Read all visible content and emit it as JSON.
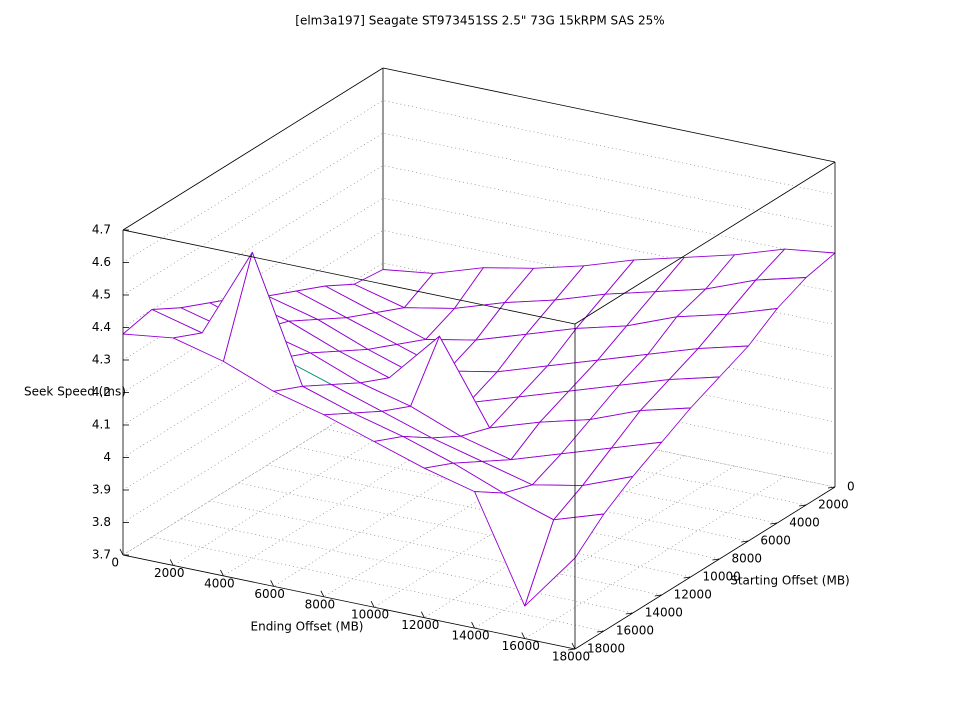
{
  "chart_data": {
    "type": "surface",
    "title": "[elm3a197] Seagate ST973451SS 2.5\" 73G 15kRPM SAS 25%",
    "x_label": "Ending Offset (MB)",
    "y_label": "Starting Offset (MB)",
    "z_label": "Seek Speed (ms)",
    "x": [
      0,
      2000,
      4000,
      6000,
      8000,
      10000,
      12000,
      14000,
      16000,
      18000
    ],
    "y": [
      0,
      2000,
      4000,
      6000,
      8000,
      10000,
      12000,
      14000,
      16000,
      18000
    ],
    "z": [
      [
        4.08,
        4.1,
        4.15,
        4.18,
        4.22,
        4.27,
        4.31,
        4.35,
        4.4,
        4.42
      ],
      [
        4.09,
        4.05,
        4.08,
        4.13,
        4.17,
        4.22,
        4.26,
        4.3,
        4.36,
        4.4
      ],
      [
        4.14,
        4.09,
        4.04,
        4.07,
        4.12,
        4.17,
        4.21,
        4.27,
        4.31,
        4.36
      ],
      [
        4.18,
        4.13,
        4.08,
        4.03,
        4.06,
        4.11,
        4.16,
        4.21,
        4.26,
        4.3
      ],
      [
        4.22,
        4.18,
        4.12,
        4.07,
        4.02,
        4.07,
        4.12,
        4.17,
        4.22,
        4.26
      ],
      [
        4.27,
        4.23,
        4.17,
        4.12,
        4.28,
        4.03,
        4.08,
        4.12,
        4.18,
        4.22
      ],
      [
        4.31,
        4.26,
        4.22,
        4.16,
        4.12,
        4.06,
        4.02,
        4.07,
        4.12,
        4.17
      ],
      [
        4.35,
        4.31,
        4.26,
        4.21,
        4.16,
        4.11,
        4.07,
        4.03,
        4.06,
        4.12
      ],
      [
        4.4,
        4.36,
        4.64,
        4.26,
        4.21,
        4.17,
        4.12,
        4.06,
        4.01,
        4.06
      ],
      [
        4.38,
        4.4,
        4.36,
        4.3,
        4.26,
        4.21,
        4.16,
        4.12,
        3.8,
        3.98
      ]
    ],
    "xlim": [
      0,
      18000
    ],
    "ylim": [
      0,
      18000
    ],
    "zlim": [
      3.7,
      4.7
    ],
    "xticks": [
      0,
      2000,
      4000,
      6000,
      8000,
      10000,
      12000,
      14000,
      16000,
      18000
    ],
    "yticks": [
      0,
      2000,
      4000,
      6000,
      8000,
      10000,
      12000,
      14000,
      16000,
      18000
    ],
    "zticks": [
      3.7,
      3.8,
      3.9,
      4,
      4.1,
      4.2,
      4.3,
      4.4,
      4.5,
      4.6,
      4.7
    ],
    "grid": true,
    "top_color": "#9400d3",
    "bottom_color": "#009e73"
  }
}
